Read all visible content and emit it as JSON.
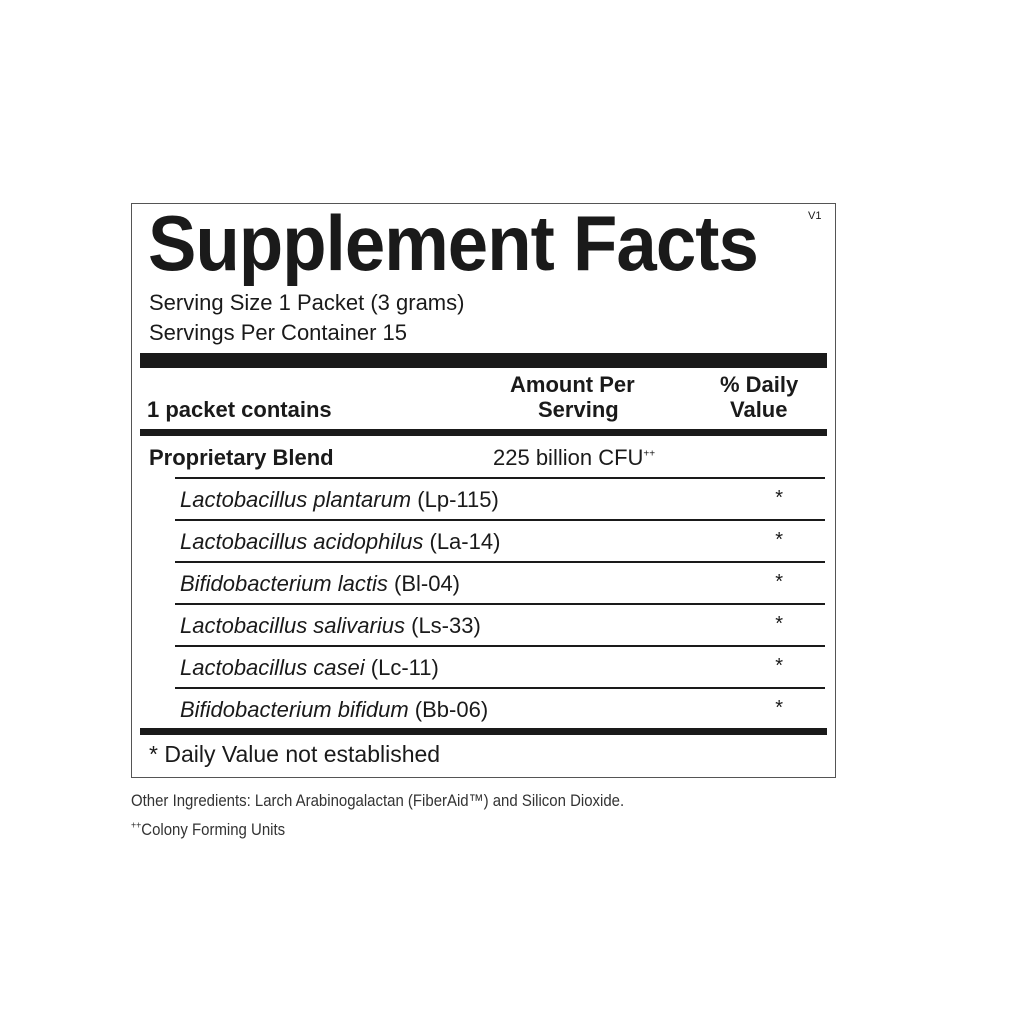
{
  "title": "Supplement Facts",
  "version": "V1",
  "serving_size": "Serving Size 1 Packet (3 grams)",
  "servings_per_container": "Servings Per Container 15",
  "header": {
    "contains": "1 packet contains",
    "amount_line1": "Amount Per",
    "amount_line2": "Serving",
    "dv_line1": "% Daily",
    "dv_line2": "Value"
  },
  "blend": {
    "name": "Proprietary Blend",
    "amount": "225 billion CFU",
    "amount_sup": "++"
  },
  "ingredients": [
    {
      "species": "Lactobacillus plantarum",
      "strain": "(Lp-115)",
      "dv": "*"
    },
    {
      "species": "Lactobacillus acidophilus",
      "strain": "(La-14)",
      "dv": "*"
    },
    {
      "species": "Bifidobacterium lactis",
      "strain": "(Bl-04)",
      "dv": "*"
    },
    {
      "species": "Lactobacillus salivarius",
      "strain": "(Ls-33)",
      "dv": "*"
    },
    {
      "species": "Lactobacillus casei",
      "strain": "(Lc-11)",
      "dv": "*"
    },
    {
      "species": "Bifidobacterium bifidum",
      "strain": "(Bb-06)",
      "dv": "*"
    }
  ],
  "dv_note": "* Daily Value not established",
  "other_ingredients": "Other Ingredients: Larch Arabinogalactan (FiberAid™) and Silicon Dioxide.",
  "cfu_note_sup": "++",
  "cfu_note": "Colony Forming Units"
}
